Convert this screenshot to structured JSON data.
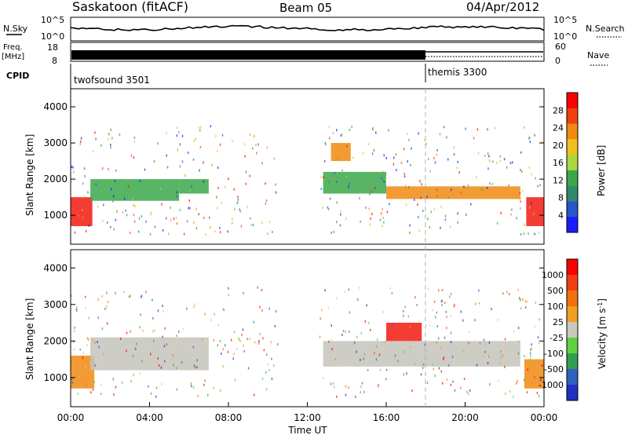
{
  "header": {
    "station": "Saskatoon (fitACF)",
    "beam": "Beam 05",
    "date": "04/Apr/2012"
  },
  "panels": {
    "nsky_label": "N.Sky",
    "nsky_ticks": [
      "10^5",
      "10^0"
    ],
    "nsearch_label": "N.Search",
    "nsearch_ticks": [
      "10^5",
      "10^0"
    ],
    "freq_label": "Freq.",
    "freq_unit": "[MHz]",
    "freq_ticks": [
      "18",
      "8"
    ],
    "nave_label": "Nave",
    "nave_ticks": [
      "60",
      "0"
    ],
    "cpid_label": "CPID",
    "cpid_segments": [
      {
        "name": "twofsound 3501",
        "start_hour": 0
      },
      {
        "name": "themis 3300",
        "start_hour": 18
      }
    ]
  },
  "chart_data": [
    {
      "type": "heatmap",
      "name": "power",
      "ylabel": "Slant Range [km]",
      "xlabel": "",
      "ylim": [
        200,
        4500
      ],
      "yticks": [
        "1000",
        "2000",
        "3000",
        "4000"
      ],
      "xlim": [
        0,
        24
      ],
      "xticks": [
        "00:00",
        "04:00",
        "08:00",
        "12:00",
        "16:00",
        "20:00",
        "00:00"
      ],
      "colorbar": {
        "label": "Power [dB]",
        "ticks": [
          "28",
          "24",
          "20",
          "16",
          "12",
          "8",
          "4"
        ],
        "colors": [
          "#1a1aff",
          "#2855c8",
          "#2f8a6a",
          "#3aa84a",
          "#a8d840",
          "#f0c020",
          "#f08a10",
          "#f04010",
          "#ff0000"
        ]
      },
      "bands": [
        {
          "from_hour": 0,
          "to_hour": 1.1,
          "range_low": 700,
          "range_high": 1500,
          "level": "red"
        },
        {
          "from_hour": 1.0,
          "to_hour": 5.5,
          "range_low": 1400,
          "range_high": 2000,
          "level": "green"
        },
        {
          "from_hour": 5.5,
          "to_hour": 7.0,
          "range_low": 1600,
          "range_high": 2000,
          "level": "green"
        },
        {
          "from_hour": 12.8,
          "to_hour": 16.0,
          "range_low": 1600,
          "range_high": 2200,
          "level": "green"
        },
        {
          "from_hour": 13.2,
          "to_hour": 14.2,
          "range_low": 2500,
          "range_high": 3000,
          "level": "orange"
        },
        {
          "from_hour": 16.0,
          "to_hour": 22.8,
          "range_low": 1450,
          "range_high": 1800,
          "level": "orange"
        },
        {
          "from_hour": 23.1,
          "to_hour": 24.0,
          "range_low": 700,
          "range_high": 1500,
          "level": "red"
        }
      ]
    },
    {
      "type": "heatmap",
      "name": "velocity",
      "ylabel": "Slant Range [km]",
      "xlabel": "Time UT",
      "ylim": [
        200,
        4500
      ],
      "yticks": [
        "1000",
        "2000",
        "3000",
        "4000"
      ],
      "xlim": [
        0,
        24
      ],
      "xticks": [
        "00:00",
        "04:00",
        "08:00",
        "12:00",
        "16:00",
        "20:00",
        "00:00"
      ],
      "colorbar": {
        "label": "Velocity [m s",
        "label_superscript": "-1",
        "label_close": "]",
        "ticks": [
          "1000",
          "500",
          "100",
          "25",
          "-25",
          "-100",
          "-500",
          "-1000"
        ],
        "colors": [
          "#2030c0",
          "#3060c0",
          "#30a050",
          "#60d040",
          "#c8c8c0",
          "#f0a020",
          "#f07010",
          "#f04010",
          "#ff0000"
        ]
      },
      "bands": [
        {
          "from_hour": 0,
          "to_hour": 1.2,
          "range_low": 700,
          "range_high": 1600,
          "level": "orange"
        },
        {
          "from_hour": 1.0,
          "to_hour": 7.0,
          "range_low": 1200,
          "range_high": 2100,
          "level": "gray"
        },
        {
          "from_hour": 12.8,
          "to_hour": 22.8,
          "range_low": 1300,
          "range_high": 2000,
          "level": "gray"
        },
        {
          "from_hour": 16.0,
          "to_hour": 17.8,
          "range_low": 2000,
          "range_high": 2500,
          "level": "red"
        },
        {
          "from_hour": 23.0,
          "to_hour": 24.0,
          "range_low": 700,
          "range_high": 1500,
          "level": "orange"
        }
      ]
    }
  ],
  "colors": {
    "red": "#f01a10",
    "orange": "#f08a10",
    "green": "#3aa84a",
    "gray": "#c4c4bc",
    "dashed_line": "#b0b0b0"
  }
}
